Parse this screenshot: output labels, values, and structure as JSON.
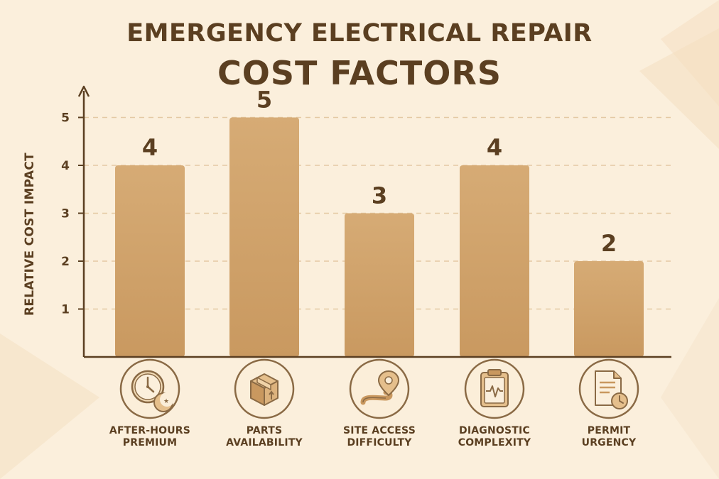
{
  "title_line1": "EMERGENCY ELECTRICAL REPAIR",
  "title_line2": "COST FACTORS",
  "chart_data": {
    "type": "bar",
    "title": "EMERGENCY ELECTRICAL REPAIR COST FACTORS",
    "ylabel": "RELATIVE COST IMPACT",
    "xlabel": "",
    "ylim": [
      0,
      5.5
    ],
    "yticks": [
      1,
      2,
      3,
      4,
      5
    ],
    "grid": true,
    "categories": [
      "AFTER-HOURS PREMIUM",
      "PARTS AVAILABILITY",
      "SITE ACCESS DIFFICULTY",
      "DIAGNOSTIC COMPLEXITY",
      "PERMIT URGENCY"
    ],
    "category_lines": [
      [
        "AFTER-HOURS",
        "PREMIUM"
      ],
      [
        "PARTS",
        "AVAILABILITY"
      ],
      [
        "SITE ACCESS",
        "DIFFICULTY"
      ],
      [
        "DIAGNOSTIC",
        "COMPLEXITY"
      ],
      [
        "PERMIT",
        "URGENCY"
      ]
    ],
    "values": [
      4,
      5,
      3,
      4,
      2
    ],
    "value_labels": [
      "4",
      "5",
      "3",
      "4",
      "2"
    ],
    "icons": [
      "clock-moon-icon",
      "box-icon",
      "location-path-icon",
      "clipboard-pulse-icon",
      "document-clock-icon"
    ],
    "colors": {
      "bar": "#d1a46d",
      "bar_dark": "#c08f58",
      "text": "#5b3f21",
      "axis": "#5b3f21",
      "grid": "#e4c9a3",
      "badge_bg": "#fbeed9",
      "badge_ring": "#8a6a45",
      "background": "#fbefdc"
    }
  }
}
